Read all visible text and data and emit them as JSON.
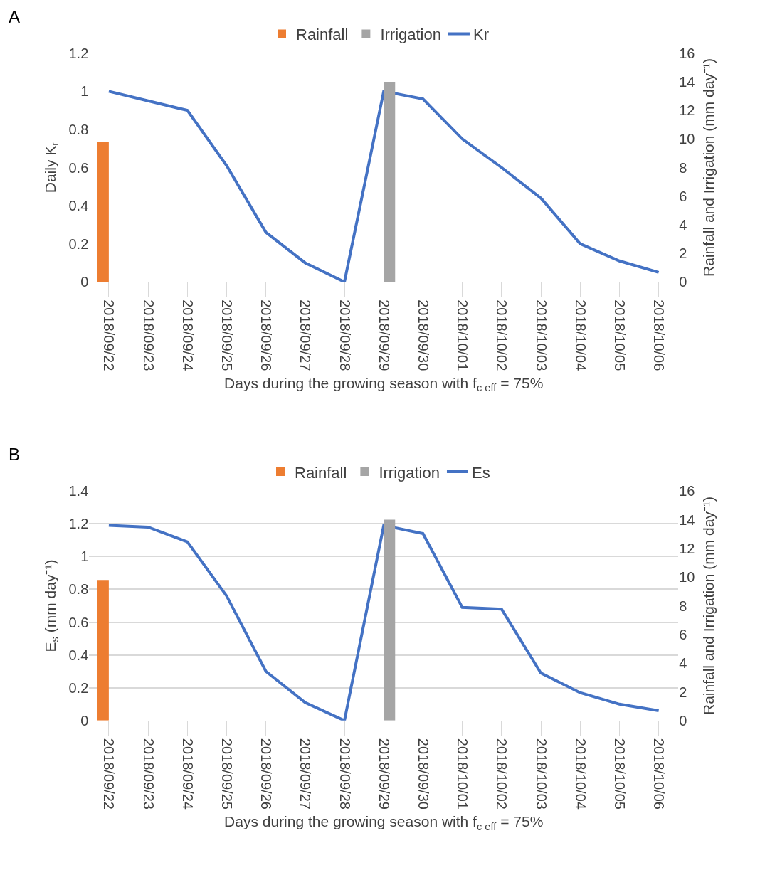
{
  "chart_data": [
    {
      "type": "line",
      "title": "A",
      "xlabel": "Days during the growing season with f$_{c eff}$ = 75%",
      "ylabel": "Daily K$_{r}$",
      "y2label": "Rainfall and Irrigation (mm day⁻¹)",
      "categories": [
        "2018/09/22",
        "2018/09/23",
        "2018/09/24",
        "2018/09/25",
        "2018/09/26",
        "2018/09/27",
        "2018/09/28",
        "2018/09/29",
        "2018/09/30",
        "2018/10/01",
        "2018/10/02",
        "2018/10/03",
        "2018/10/04",
        "2018/10/05",
        "2018/10/06"
      ],
      "series": [
        {
          "name": "Rainfall",
          "type": "bar",
          "axis": "y2",
          "color": "#ed7d31",
          "values": [
            9.8,
            null,
            null,
            null,
            null,
            null,
            null,
            null,
            null,
            null,
            null,
            null,
            null,
            null,
            null
          ]
        },
        {
          "name": "Irrigation",
          "type": "bar",
          "axis": "y2",
          "color": "#a5a5a5",
          "values": [
            null,
            null,
            null,
            null,
            null,
            null,
            null,
            14,
            null,
            null,
            null,
            null,
            null,
            null,
            null
          ]
        },
        {
          "name": "Kr",
          "color": "#4472c4",
          "values": [
            1.0,
            0.95,
            0.9,
            0.61,
            0.26,
            0.1,
            0.0,
            1.0,
            0.96,
            0.75,
            0.6,
            0.44,
            0.2,
            0.11,
            0.05
          ]
        }
      ],
      "ylim": [
        0,
        1.2
      ],
      "yticks": [
        0,
        0.2,
        0.4,
        0.6,
        0.8,
        1,
        1.2
      ],
      "y2lim": [
        0,
        16
      ],
      "y2ticks": [
        0,
        2,
        4,
        6,
        8,
        10,
        12,
        14,
        16
      ],
      "grid": false,
      "legend": "top",
      "marker": "none",
      "line_style": "solid"
    },
    {
      "type": "line",
      "title": "B",
      "xlabel": "Days during the growing season with f$_{c eff}$ = 75%",
      "ylabel": "E$_{s}$ (mm day⁻¹)",
      "y2label": "Rainfall and Irrigation (mm day⁻¹)",
      "categories": [
        "2018/09/22",
        "2018/09/23",
        "2018/09/24",
        "2018/09/25",
        "2018/09/26",
        "2018/09/27",
        "2018/09/28",
        "2018/09/29",
        "2018/09/30",
        "2018/10/01",
        "2018/10/02",
        "2018/10/03",
        "2018/10/04",
        "2018/10/05",
        "2018/10/06"
      ],
      "series": [
        {
          "name": "Rainfall",
          "type": "bar",
          "axis": "y2",
          "color": "#ed7d31",
          "values": [
            9.8,
            null,
            null,
            null,
            null,
            null,
            null,
            null,
            null,
            null,
            null,
            null,
            null,
            null,
            null
          ]
        },
        {
          "name": "Irrigation",
          "type": "bar",
          "axis": "y2",
          "color": "#a5a5a5",
          "values": [
            null,
            null,
            null,
            null,
            null,
            null,
            null,
            14,
            null,
            null,
            null,
            null,
            null,
            null,
            null
          ]
        },
        {
          "name": "Es",
          "color": "#4472c4",
          "values": [
            1.19,
            1.18,
            1.09,
            0.76,
            0.3,
            0.11,
            0.0,
            1.19,
            1.14,
            0.69,
            0.68,
            0.29,
            0.17,
            0.1,
            0.06
          ]
        }
      ],
      "ylim": [
        0,
        1.4
      ],
      "yticks": [
        0,
        0.2,
        0.4,
        0.6,
        0.8,
        1,
        1.2,
        1.4
      ],
      "y2lim": [
        0,
        16
      ],
      "y2ticks": [
        0,
        2,
        4,
        6,
        8,
        10,
        12,
        14,
        16
      ],
      "grid": "y",
      "legend": "top",
      "marker": "none",
      "line_style": "solid"
    }
  ]
}
